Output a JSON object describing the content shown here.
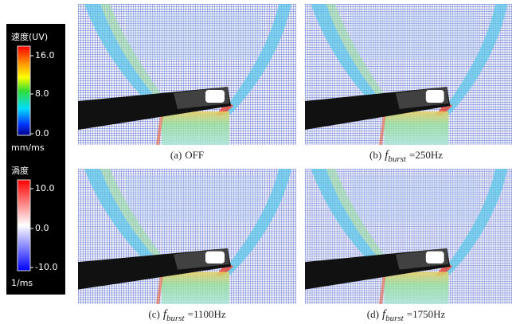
{
  "colorbars": [
    {
      "title": "速度(UV)",
      "ticks": [
        "16.0",
        "8.0",
        "0.0"
      ],
      "unit": "mm/ms"
    },
    {
      "title": "渦度",
      "ticks": [
        "10.0",
        "0.0",
        "-10.0"
      ],
      "unit": "1/ms"
    }
  ],
  "panels": [
    {
      "label": "(a)",
      "text": "OFF"
    },
    {
      "label": "(b)",
      "symbol": "f",
      "subscript": "burst",
      "text": "=250Hz"
    },
    {
      "label": "(c)",
      "symbol": "f",
      "subscript": "burst",
      "text": "=1100Hz"
    },
    {
      "label": "(d)",
      "symbol": "f",
      "subscript": "burst",
      "text": "=1750Hz"
    }
  ]
}
